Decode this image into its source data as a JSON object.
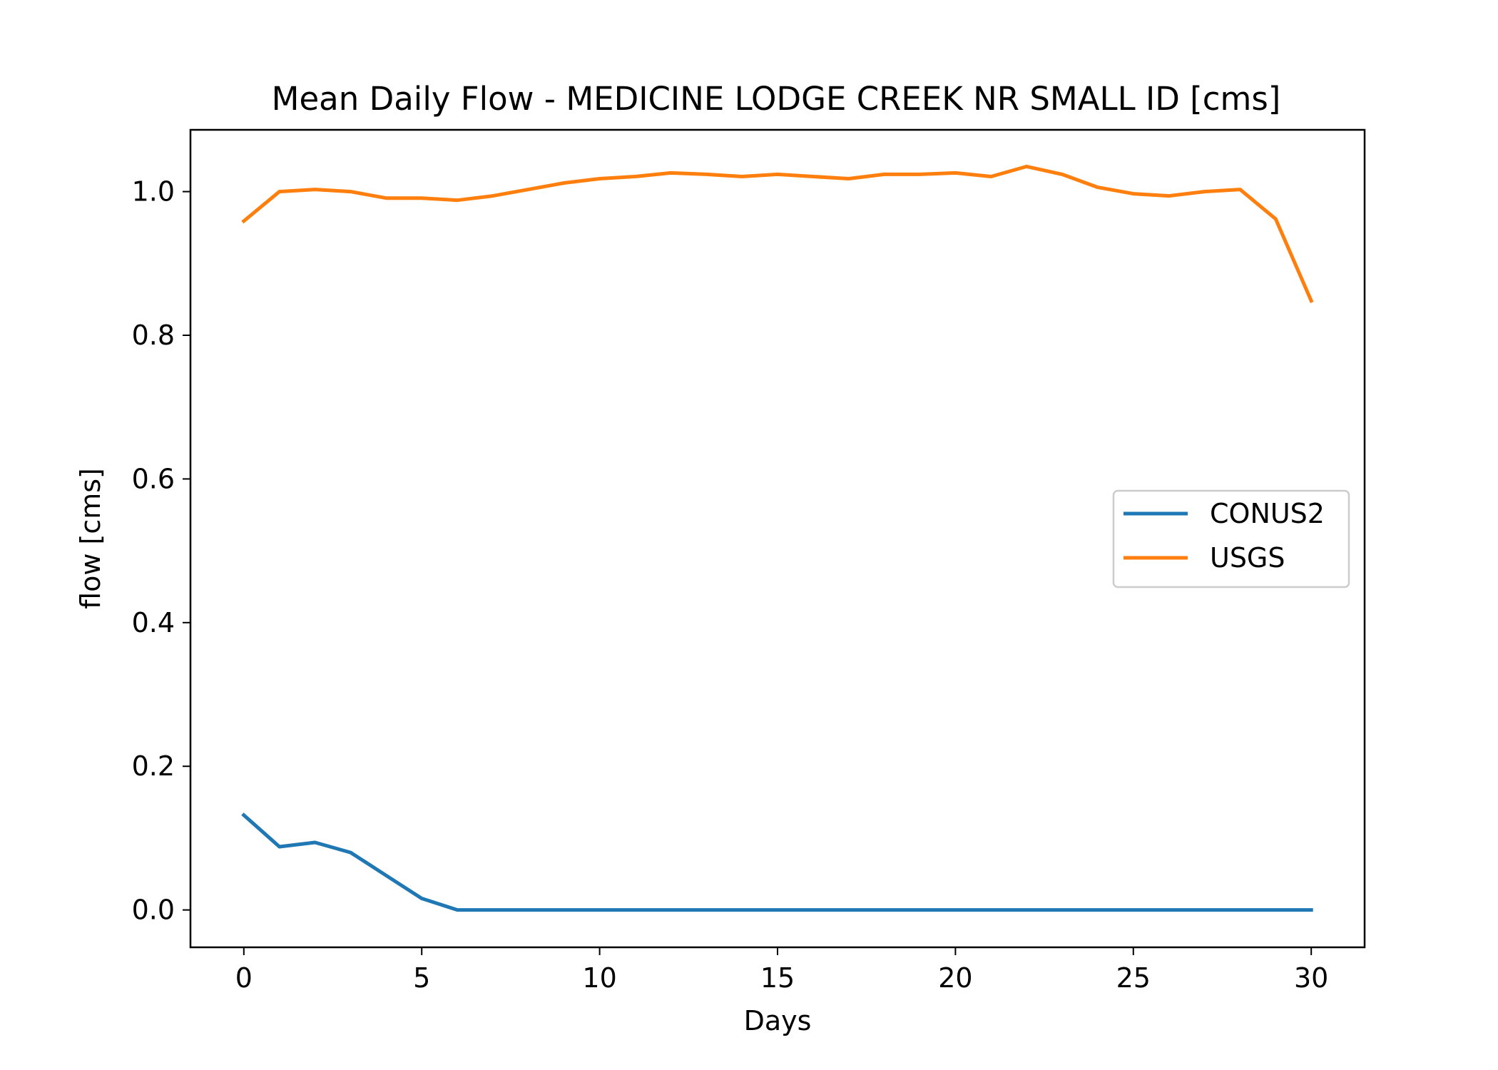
{
  "chart_data": {
    "type": "line",
    "title": "Mean Daily Flow - MEDICINE LODGE CREEK NR SMALL ID [cms]",
    "xlabel": "Days",
    "ylabel": "flow [cms]",
    "xlim": [
      -1.5,
      31.5
    ],
    "ylim": [
      -0.052,
      1.086
    ],
    "xticks": [
      0,
      5,
      10,
      15,
      20,
      25,
      30
    ],
    "xtick_labels": [
      "0",
      "5",
      "10",
      "15",
      "20",
      "25",
      "30"
    ],
    "yticks": [
      0.0,
      0.2,
      0.4,
      0.6,
      0.8,
      1.0
    ],
    "ytick_labels": [
      "0.0",
      "0.2",
      "0.4",
      "0.6",
      "0.8",
      "1.0"
    ],
    "grid": false,
    "legend_position": "center-right",
    "x": [
      0,
      1,
      2,
      3,
      4,
      5,
      6,
      7,
      8,
      9,
      10,
      11,
      12,
      13,
      14,
      15,
      16,
      17,
      18,
      19,
      20,
      21,
      22,
      23,
      24,
      25,
      26,
      27,
      28,
      29,
      30
    ],
    "series": [
      {
        "name": "CONUS2",
        "color": "#1f77b4",
        "values": [
          0.132,
          0.088,
          0.094,
          0.08,
          0.048,
          0.016,
          0.0,
          0.0,
          0.0,
          0.0,
          0.0,
          0.0,
          0.0,
          0.0,
          0.0,
          0.0,
          0.0,
          0.0,
          0.0,
          0.0,
          0.0,
          0.0,
          0.0,
          0.0,
          0.0,
          0.0,
          0.0,
          0.0,
          0.0,
          0.0,
          0.0
        ]
      },
      {
        "name": "USGS",
        "color": "#ff7f0e",
        "values": [
          0.959,
          1.0,
          1.003,
          1.0,
          0.991,
          0.991,
          0.988,
          0.994,
          1.003,
          1.012,
          1.018,
          1.021,
          1.026,
          1.024,
          1.021,
          1.024,
          1.021,
          1.018,
          1.024,
          1.024,
          1.026,
          1.021,
          1.035,
          1.024,
          1.006,
          0.997,
          0.994,
          1.0,
          1.003,
          0.962,
          0.848
        ]
      }
    ]
  }
}
